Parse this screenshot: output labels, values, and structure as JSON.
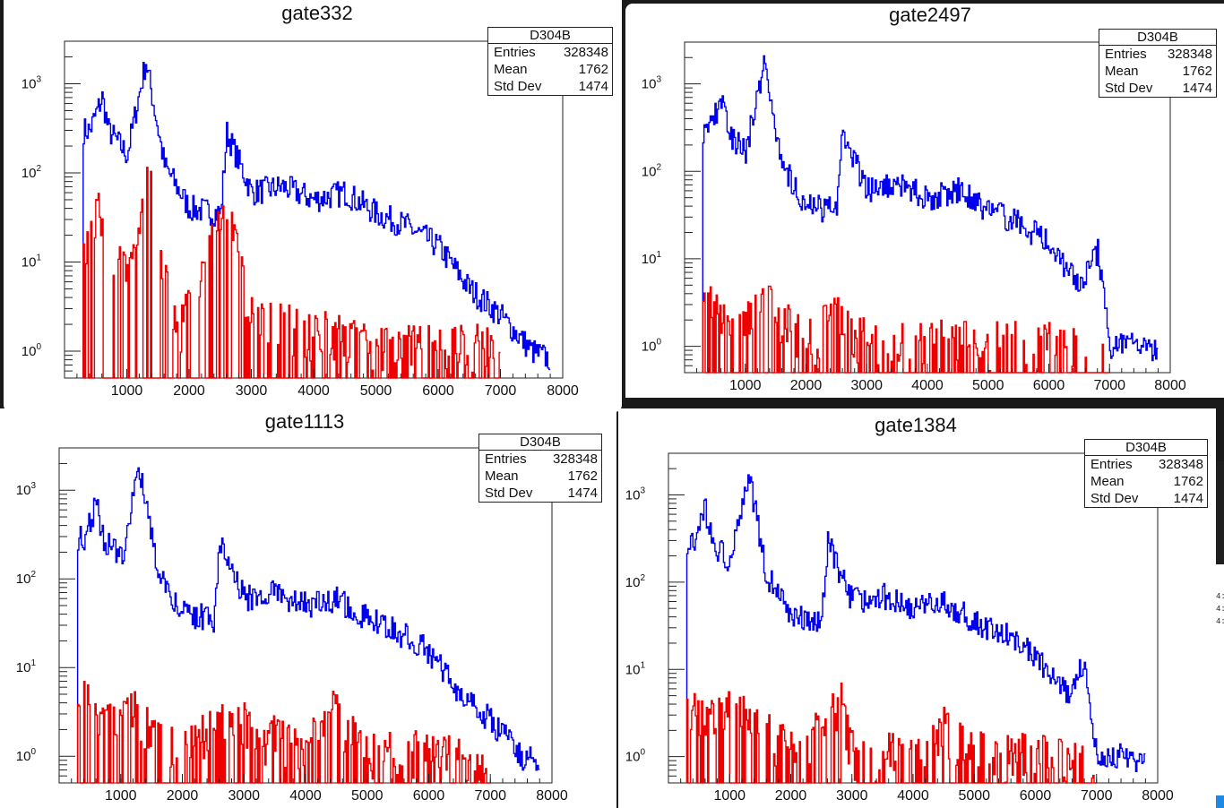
{
  "window": {
    "background_dark": "#1a1a1a",
    "edge_strip_text": [
      "4:",
      "4:",
      "4:"
    ]
  },
  "colors": {
    "blue_series": "#0000ee",
    "red_series": "#ee0000",
    "axis": "#222222"
  },
  "stats_template": {
    "name": "D304B",
    "entries_label": "Entries",
    "entries_value": "328348",
    "mean_label": "Mean",
    "mean_value": "1762",
    "stddev_label": "Std Dev",
    "stddev_value": "1474"
  },
  "chart_data": [
    {
      "type": "line",
      "title": "gate332",
      "xlabel": "",
      "ylabel": "",
      "y_scale": "log",
      "xlim": [
        0,
        8000
      ],
      "ylim": [
        0.5,
        3000
      ],
      "x_ticks": [
        "1000",
        "2000",
        "3000",
        "4000",
        "5000",
        "6000",
        "7000",
        "8000"
      ],
      "y_ticks": [
        "10^0",
        "10^1",
        "10^2",
        "10^3"
      ],
      "grid": false,
      "legend": "stats box top-right",
      "stats": {
        "name": "D304B",
        "entries": "328348",
        "mean": "1762",
        "std_dev": "1474"
      },
      "series": [
        {
          "color": "blue",
          "x": [
            300,
            400,
            600,
            700,
            1000,
            1300,
            1600,
            2000,
            2500,
            2600,
            3000,
            3500,
            4000,
            4500,
            5000,
            5500,
            6000,
            6500,
            7000,
            7500,
            7800
          ],
          "values": [
            300,
            300,
            700,
            300,
            160,
            1800,
            120,
            40,
            35,
            280,
            60,
            70,
            50,
            60,
            35,
            25,
            15,
            5,
            2.5,
            1,
            0.8
          ]
        },
        {
          "color": "red",
          "x": [
            300,
            500,
            700,
            1000,
            1200,
            1300,
            1500,
            1800,
            2600,
            3000,
            4000,
            5000,
            6000,
            6800,
            7000
          ],
          "values": [
            8,
            40,
            15,
            8,
            15,
            120,
            15,
            1.2,
            40,
            2,
            1.5,
            1,
            1,
            1,
            0.5
          ]
        }
      ]
    },
    {
      "type": "line",
      "title": "gate2497",
      "xlabel": "",
      "ylabel": "",
      "y_scale": "log",
      "xlim": [
        0,
        8000
      ],
      "ylim": [
        0.5,
        3000
      ],
      "x_ticks": [
        "1000",
        "2000",
        "3000",
        "4000",
        "5000",
        "6000",
        "7000",
        "8000"
      ],
      "y_ticks": [
        "10^0",
        "10^1",
        "10^2",
        "10^3"
      ],
      "grid": false,
      "legend": "stats box top-right",
      "stats": {
        "name": "D304B",
        "entries": "328348",
        "mean": "1762",
        "std_dev": "1474"
      },
      "series": [
        {
          "color": "blue",
          "x": [
            300,
            400,
            600,
            700,
            1000,
            1300,
            1600,
            2000,
            2500,
            2600,
            3000,
            3500,
            4000,
            4500,
            5000,
            5500,
            6000,
            6500,
            6800,
            7000,
            7500,
            7800
          ],
          "values": [
            300,
            300,
            700,
            300,
            160,
            1800,
            120,
            40,
            35,
            280,
            60,
            70,
            50,
            60,
            35,
            25,
            15,
            5,
            12,
            1,
            1,
            0.8
          ]
        },
        {
          "color": "red",
          "x": [
            300,
            400,
            600,
            1200,
            1300,
            1500,
            2000,
            2500,
            3000,
            4000,
            5000,
            6000,
            7000
          ],
          "values": [
            2,
            3,
            2,
            2,
            3,
            2,
            1,
            2,
            1,
            1,
            1,
            1,
            0.6
          ]
        }
      ]
    },
    {
      "type": "line",
      "title": "gate1113",
      "xlabel": "",
      "ylabel": "",
      "y_scale": "log",
      "xlim": [
        0,
        8000
      ],
      "ylim": [
        0.5,
        3000
      ],
      "x_ticks": [
        "1000",
        "2000",
        "3000",
        "4000",
        "5000",
        "6000",
        "7000",
        "8000"
      ],
      "y_ticks": [
        "10^0",
        "10^1",
        "10^2",
        "10^3"
      ],
      "grid": false,
      "legend": "stats box top-right",
      "stats": {
        "name": "D304B",
        "entries": "328348",
        "mean": "1762",
        "std_dev": "1474"
      },
      "series": [
        {
          "color": "blue",
          "x": [
            300,
            400,
            600,
            700,
            1000,
            1300,
            1600,
            2000,
            2500,
            2600,
            3000,
            3500,
            4000,
            4500,
            5000,
            5500,
            6000,
            6500,
            7000,
            7500,
            7800
          ],
          "values": [
            300,
            300,
            700,
            300,
            160,
            1800,
            120,
            40,
            35,
            280,
            60,
            70,
            50,
            60,
            35,
            25,
            15,
            5,
            2.5,
            1,
            0.8
          ]
        },
        {
          "color": "red",
          "x": [
            300,
            400,
            600,
            1000,
            1200,
            1400,
            2000,
            2600,
            3000,
            4000,
            4400,
            5000,
            6000,
            7000
          ],
          "values": [
            3,
            5,
            2,
            2,
            3,
            2,
            1,
            2,
            2,
            1,
            3,
            1,
            1,
            0.6
          ]
        }
      ]
    },
    {
      "type": "line",
      "title": "gate1384",
      "xlabel": "",
      "ylabel": "",
      "y_scale": "log",
      "xlim": [
        0,
        8000
      ],
      "ylim": [
        0.5,
        3000
      ],
      "x_ticks": [
        "1000",
        "2000",
        "3000",
        "4000",
        "5000",
        "6000",
        "7000",
        "8000"
      ],
      "y_ticks": [
        "10^0",
        "10^1",
        "10^2",
        "10^3"
      ],
      "grid": false,
      "legend": "stats box top-right",
      "stats": {
        "name": "D304B",
        "entries": "328348",
        "mean": "1762",
        "std_dev": "1474"
      },
      "series": [
        {
          "color": "blue",
          "x": [
            300,
            400,
            600,
            700,
            1000,
            1300,
            1600,
            2000,
            2500,
            2600,
            3000,
            3500,
            4000,
            4500,
            5000,
            5500,
            6000,
            6500,
            6800,
            7000,
            7500,
            7800
          ],
          "values": [
            300,
            300,
            700,
            300,
            160,
            1800,
            120,
            40,
            35,
            280,
            60,
            70,
            50,
            60,
            35,
            25,
            15,
            5,
            12,
            1,
            1,
            0.8
          ]
        },
        {
          "color": "red",
          "x": [
            300,
            400,
            600,
            1000,
            1200,
            1400,
            2000,
            2500,
            2800,
            3000,
            4000,
            4500,
            5000,
            6000,
            7000
          ],
          "values": [
            5,
            3,
            2,
            3,
            3,
            2,
            1,
            2,
            4,
            1,
            1,
            2,
            1,
            1,
            0.6
          ]
        }
      ]
    }
  ]
}
